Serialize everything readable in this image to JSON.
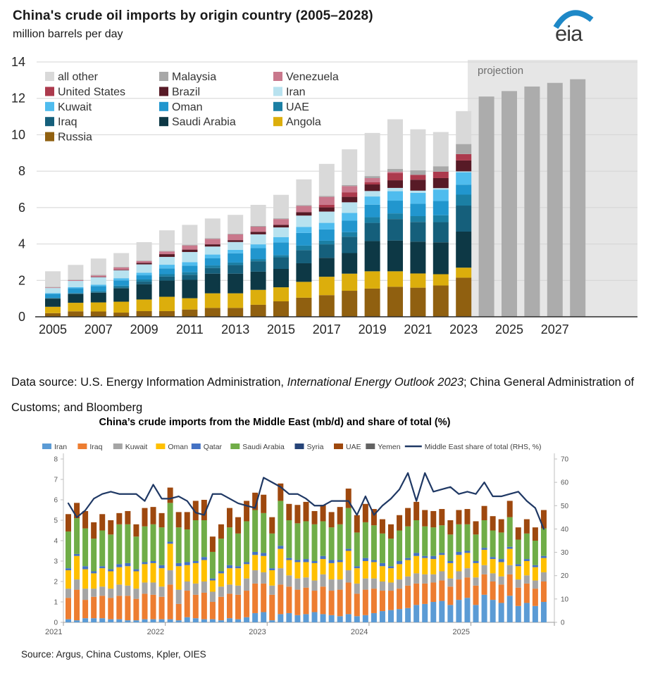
{
  "header": {
    "logo_text": "eia"
  },
  "datasource": {
    "prefix": "Data source: U.S. Energy Information Administration, ",
    "italic": "International Energy Outlook 2023",
    "suffix": "; China General Administration of Customs; and Bloomberg"
  },
  "source_bottom": "Source: Argus, China Customs, Kpler, OIES",
  "chart_data": [
    {
      "type": "bar",
      "stacked": true,
      "title": "China's crude oil imports by origin country (2005–2028)",
      "subtitle": "million barrels per day",
      "units": "million barrels per day",
      "years": [
        2005,
        2006,
        2007,
        2008,
        2009,
        2010,
        2011,
        2012,
        2013,
        2014,
        2015,
        2016,
        2017,
        2018,
        2019,
        2020,
        2021,
        2022,
        2023
      ],
      "xticks": [
        2005,
        2007,
        2009,
        2011,
        2013,
        2015,
        2017,
        2019,
        2021,
        2023,
        2025,
        2027
      ],
      "ylim": [
        0,
        14
      ],
      "ytick_step": 2,
      "legend": [
        "all other",
        "Malaysia",
        "Venezuela",
        "United States",
        "Brazil",
        "Iran",
        "Kuwait",
        "Oman",
        "UAE",
        "Iraq",
        "Saudi Arabia",
        "Angola",
        "Russia"
      ],
      "series": [
        {
          "name": "Russia",
          "color": "#906010",
          "values": [
            0.2,
            0.3,
            0.29,
            0.23,
            0.31,
            0.31,
            0.4,
            0.49,
            0.49,
            0.66,
            0.85,
            1.05,
            1.19,
            1.43,
            1.55,
            1.65,
            1.6,
            1.72,
            2.15
          ]
        },
        {
          "name": "Angola",
          "color": "#DCAE0C",
          "values": [
            0.35,
            0.47,
            0.5,
            0.6,
            0.64,
            0.79,
            0.62,
            0.8,
            0.8,
            0.82,
            0.77,
            0.87,
            1.01,
            0.94,
            0.95,
            0.85,
            0.78,
            0.62,
            0.55
          ]
        },
        {
          "name": "Saudi Arabia",
          "color": "#0D3845",
          "values": [
            0.45,
            0.48,
            0.53,
            0.73,
            0.84,
            0.89,
            1.01,
            1.08,
            1.08,
            1.0,
            1.01,
            1.02,
            1.04,
            1.13,
            1.66,
            1.69,
            1.75,
            1.75,
            1.98
          ]
        },
        {
          "name": "Iraq",
          "color": "#155F7B",
          "values": [
            0.02,
            0.03,
            0.03,
            0.06,
            0.14,
            0.22,
            0.28,
            0.31,
            0.47,
            0.57,
            0.64,
            0.72,
            0.74,
            0.9,
            1.0,
            1.18,
            1.08,
            1.11,
            1.43
          ]
        },
        {
          "name": "UAE",
          "color": "#1B7FA4",
          "values": [
            0.02,
            0.03,
            0.07,
            0.09,
            0.12,
            0.13,
            0.14,
            0.14,
            0.14,
            0.12,
            0.12,
            0.25,
            0.2,
            0.25,
            0.31,
            0.31,
            0.32,
            0.38,
            0.6
          ]
        },
        {
          "name": "Oman",
          "color": "#2196CE",
          "values": [
            0.22,
            0.26,
            0.27,
            0.29,
            0.23,
            0.32,
            0.36,
            0.39,
            0.51,
            0.6,
            0.7,
            0.7,
            0.62,
            0.63,
            0.69,
            0.7,
            0.68,
            0.78,
            0.55
          ]
        },
        {
          "name": "Kuwait",
          "color": "#4FBCEE",
          "values": [
            0.04,
            0.06,
            0.07,
            0.12,
            0.14,
            0.2,
            0.19,
            0.21,
            0.19,
            0.21,
            0.29,
            0.33,
            0.36,
            0.43,
            0.45,
            0.52,
            0.6,
            0.63,
            0.68
          ]
        },
        {
          "name": "Iran",
          "color": "#B8E2EF",
          "values": [
            0.28,
            0.34,
            0.41,
            0.43,
            0.46,
            0.43,
            0.56,
            0.44,
            0.43,
            0.55,
            0.53,
            0.62,
            0.62,
            0.58,
            0.3,
            0.18,
            0.12,
            0.08,
            0.05
          ]
        },
        {
          "name": "Brazil",
          "color": "#571A26",
          "values": [
            0.0,
            0.0,
            0.02,
            0.03,
            0.08,
            0.15,
            0.13,
            0.12,
            0.1,
            0.14,
            0.14,
            0.19,
            0.23,
            0.3,
            0.36,
            0.42,
            0.6,
            0.55,
            0.6
          ]
        },
        {
          "name": "United States",
          "color": "#AC3A4D",
          "values": [
            0.0,
            0.0,
            0.0,
            0.0,
            0.0,
            0.0,
            0.0,
            0.0,
            0.0,
            0.0,
            0.0,
            0.0,
            0.15,
            0.25,
            0.13,
            0.39,
            0.27,
            0.35,
            0.35
          ]
        },
        {
          "name": "Venezuela",
          "color": "#C9788C",
          "values": [
            0.03,
            0.04,
            0.08,
            0.13,
            0.1,
            0.15,
            0.23,
            0.3,
            0.32,
            0.28,
            0.32,
            0.34,
            0.43,
            0.34,
            0.22,
            0.08,
            0.0,
            0.0,
            0.0
          ]
        },
        {
          "name": "Malaysia",
          "color": "#A8A8A8",
          "values": [
            0.03,
            0.03,
            0.03,
            0.03,
            0.03,
            0.03,
            0.04,
            0.04,
            0.04,
            0.04,
            0.04,
            0.04,
            0.05,
            0.06,
            0.11,
            0.15,
            0.25,
            0.3,
            0.55
          ]
        },
        {
          "name": "all other",
          "color": "#D9D9D9",
          "values": [
            0.86,
            0.81,
            0.9,
            0.76,
            1.01,
            1.13,
            1.09,
            1.08,
            1.03,
            1.16,
            1.29,
            1.42,
            1.76,
            1.96,
            2.37,
            2.73,
            2.25,
            1.88,
            1.81
          ]
        }
      ],
      "projection": {
        "label": "projection",
        "years": [
          2024,
          2025,
          2026,
          2027,
          2028
        ],
        "values": [
          12.1,
          12.4,
          12.65,
          12.85,
          13.05
        ],
        "bar_color": "#ACACAC",
        "band_color": "#E6E6E6",
        "label_color": "#6E6E6E"
      }
    },
    {
      "type": "bar+line",
      "title": "China’s crude imports from the Middle East (mb/d) and share of total (%)",
      "start_month": "2021-01",
      "year_ticks": [
        "2021",
        "2022",
        "2023",
        "2024",
        "2025"
      ],
      "ylim_left": [
        0,
        8
      ],
      "ylim_right": [
        0,
        70
      ],
      "series": [
        {
          "name": "Iran",
          "color": "#5B9BD5",
          "values": [
            0.15,
            0.1,
            0.2,
            0.2,
            0.2,
            0.15,
            0.15,
            0.1,
            0.1,
            0.15,
            0.15,
            0.15,
            0.15,
            0.1,
            0.25,
            0.2,
            0.15,
            0.15,
            0.1,
            0.2,
            0.15,
            0.25,
            0.45,
            0.5,
            0.1,
            0.4,
            0.45,
            0.35,
            0.4,
            0.5,
            0.4,
            0.35,
            0.3,
            0.4,
            0.3,
            0.35,
            0.45,
            0.55,
            0.6,
            0.65,
            0.7,
            0.85,
            0.9,
            1.0,
            1.05,
            0.85,
            1.1,
            1.2,
            0.85,
            1.35,
            1.1,
            0.95,
            1.3,
            0.8,
            0.95,
            0.8,
            1.0
          ]
        },
        {
          "name": "Iraq",
          "color": "#ED7D31",
          "values": [
            1.05,
            1.5,
            0.9,
            1.05,
            1.1,
            1.05,
            1.15,
            1.2,
            1.05,
            1.25,
            1.2,
            1.1,
            1.7,
            0.8,
            1.3,
            1.15,
            1.3,
            0.85,
            1.15,
            1.2,
            1.2,
            1.3,
            1.45,
            1.4,
            1.25,
            1.45,
            1.3,
            1.25,
            1.3,
            1.05,
            1.35,
            1.2,
            1.3,
            1.55,
            1.1,
            1.25,
            1.2,
            1.0,
            0.95,
            1.0,
            1.1,
            1.05,
            1.0,
            0.95,
            1.0,
            0.9,
            1.0,
            1.0,
            0.95,
            1.0,
            0.9,
            0.9,
            1.05,
            0.9,
            0.95,
            0.85,
            1.0
          ]
        },
        {
          "name": "Kuwait",
          "color": "#A5A5A5",
          "values": [
            0.45,
            0.5,
            0.55,
            0.4,
            0.45,
            0.45,
            0.55,
            0.5,
            0.5,
            0.55,
            0.6,
            0.5,
            0.7,
            0.7,
            0.45,
            0.55,
            0.55,
            0.5,
            0.5,
            0.45,
            0.45,
            0.6,
            0.65,
            0.55,
            0.45,
            0.8,
            0.55,
            0.55,
            0.5,
            0.5,
            0.6,
            0.55,
            0.5,
            0.6,
            0.5,
            0.55,
            0.5,
            0.45,
            0.4,
            0.45,
            0.45,
            0.5,
            0.45,
            0.4,
            0.45,
            0.4,
            0.4,
            0.45,
            0.4,
            0.45,
            0.4,
            0.4,
            0.45,
            0.4,
            0.4,
            0.4,
            0.45
          ]
        },
        {
          "name": "Oman",
          "color": "#FFC000",
          "values": [
            0.9,
            1.15,
            0.95,
            0.75,
            0.9,
            0.85,
            0.85,
            0.95,
            0.85,
            0.9,
            0.95,
            0.9,
            1.3,
            1.15,
            0.8,
            1.0,
            1.05,
            0.55,
            0.65,
            0.8,
            0.85,
            0.7,
            0.75,
            0.8,
            0.75,
            0.95,
            0.75,
            0.8,
            0.75,
            0.85,
            0.75,
            0.8,
            0.85,
            0.95,
            0.75,
            0.85,
            0.8,
            0.75,
            0.7,
            0.75,
            0.8,
            0.85,
            0.8,
            0.75,
            0.8,
            0.75,
            0.8,
            0.75,
            0.7,
            0.75,
            0.7,
            0.7,
            0.8,
            0.65,
            0.7,
            0.65,
            0.7
          ]
        },
        {
          "name": "Qatar",
          "color": "#4472C4",
          "values": [
            0.1,
            0.1,
            0.15,
            0.1,
            0.1,
            0.1,
            0.15,
            0.15,
            0.1,
            0.1,
            0.1,
            0.15,
            0.1,
            0.15,
            0.15,
            0.1,
            0.15,
            0.1,
            0.1,
            0.15,
            0.1,
            0.1,
            0.15,
            0.15,
            0.1,
            0.15,
            0.1,
            0.1,
            0.15,
            0.1,
            0.15,
            0.15,
            0.1,
            0.1,
            0.1,
            0.15,
            0.1,
            0.15,
            0.1,
            0.15,
            0.1,
            0.15,
            0.1,
            0.15,
            0.1,
            0.1,
            0.15,
            0.1,
            0.1,
            0.1,
            0.1,
            0.15,
            0.1,
            0.1,
            0.1,
            0.1,
            0.1
          ]
        },
        {
          "name": "Saudi Arabia",
          "color": "#70AD47",
          "values": [
            1.8,
            1.75,
            1.85,
            1.6,
            1.75,
            1.7,
            1.95,
            1.9,
            1.6,
            1.75,
            1.8,
            1.85,
            1.9,
            1.75,
            1.6,
            2.0,
            1.8,
            1.3,
            1.6,
            1.85,
            1.6,
            2.0,
            2.05,
            1.95,
            1.7,
            2.2,
            1.85,
            1.8,
            1.85,
            1.8,
            1.7,
            1.6,
            1.75,
            2.0,
            1.65,
            1.75,
            1.7,
            1.45,
            1.35,
            1.5,
            1.55,
            1.6,
            1.45,
            1.4,
            1.35,
            1.3,
            1.35,
            1.3,
            1.3,
            1.35,
            1.3,
            1.3,
            1.45,
            1.2,
            1.25,
            1.2,
            1.35
          ]
        },
        {
          "name": "Syria",
          "color": "#264478",
          "values": [
            0,
            0,
            0,
            0,
            0,
            0,
            0,
            0,
            0,
            0,
            0,
            0,
            0,
            0,
            0,
            0,
            0,
            0,
            0,
            0,
            0,
            0,
            0,
            0,
            0,
            0,
            0,
            0,
            0,
            0,
            0,
            0,
            0,
            0,
            0,
            0,
            0,
            0,
            0,
            0,
            0,
            0,
            0,
            0,
            0,
            0,
            0,
            0,
            0,
            0,
            0,
            0,
            0,
            0,
            0,
            0,
            0
          ]
        },
        {
          "name": "UAE",
          "color": "#9E480E",
          "values": [
            0.85,
            0.75,
            0.85,
            0.8,
            0.8,
            0.7,
            0.55,
            0.65,
            0.6,
            0.9,
            0.85,
            0.7,
            0.75,
            0.75,
            0.85,
            0.95,
            1.0,
            0.75,
            0.7,
            0.95,
            0.8,
            1.0,
            0.85,
            0.9,
            0.8,
            0.85,
            0.8,
            0.9,
            0.95,
            0.65,
            0.8,
            0.75,
            0.85,
            0.95,
            0.85,
            0.9,
            0.8,
            0.7,
            0.7,
            0.75,
            0.9,
            0.9,
            0.8,
            0.8,
            0.8,
            0.7,
            0.7,
            0.75,
            0.65,
            0.7,
            0.7,
            0.65,
            0.8,
            0.6,
            0.7,
            0.65,
            0.9
          ]
        },
        {
          "name": "Yemen",
          "color": "#636363",
          "values": [
            0,
            0,
            0,
            0,
            0,
            0,
            0,
            0,
            0,
            0,
            0,
            0,
            0,
            0,
            0,
            0,
            0,
            0,
            0,
            0,
            0,
            0,
            0,
            0,
            0,
            0,
            0,
            0,
            0,
            0,
            0,
            0,
            0,
            0,
            0,
            0,
            0,
            0,
            0,
            0,
            0,
            0,
            0,
            0,
            0,
            0,
            0,
            0,
            0,
            0,
            0,
            0,
            0,
            0,
            0,
            0,
            0
          ]
        }
      ],
      "line": {
        "name": "Middle East share of total (RHS, %)",
        "color": "#1F3864",
        "values": [
          51,
          45,
          48,
          53,
          55,
          56,
          55,
          55,
          55,
          52,
          59,
          53,
          53,
          54,
          52,
          47,
          46,
          55,
          55,
          53,
          51,
          50,
          49,
          62,
          60,
          58,
          55,
          55,
          53,
          50,
          50,
          52,
          52,
          52,
          46,
          54,
          46,
          50,
          53,
          57,
          64,
          52,
          64,
          56,
          57,
          58,
          55,
          56,
          55,
          60,
          54,
          54,
          55,
          56,
          52,
          49,
          40
        ]
      }
    }
  ]
}
